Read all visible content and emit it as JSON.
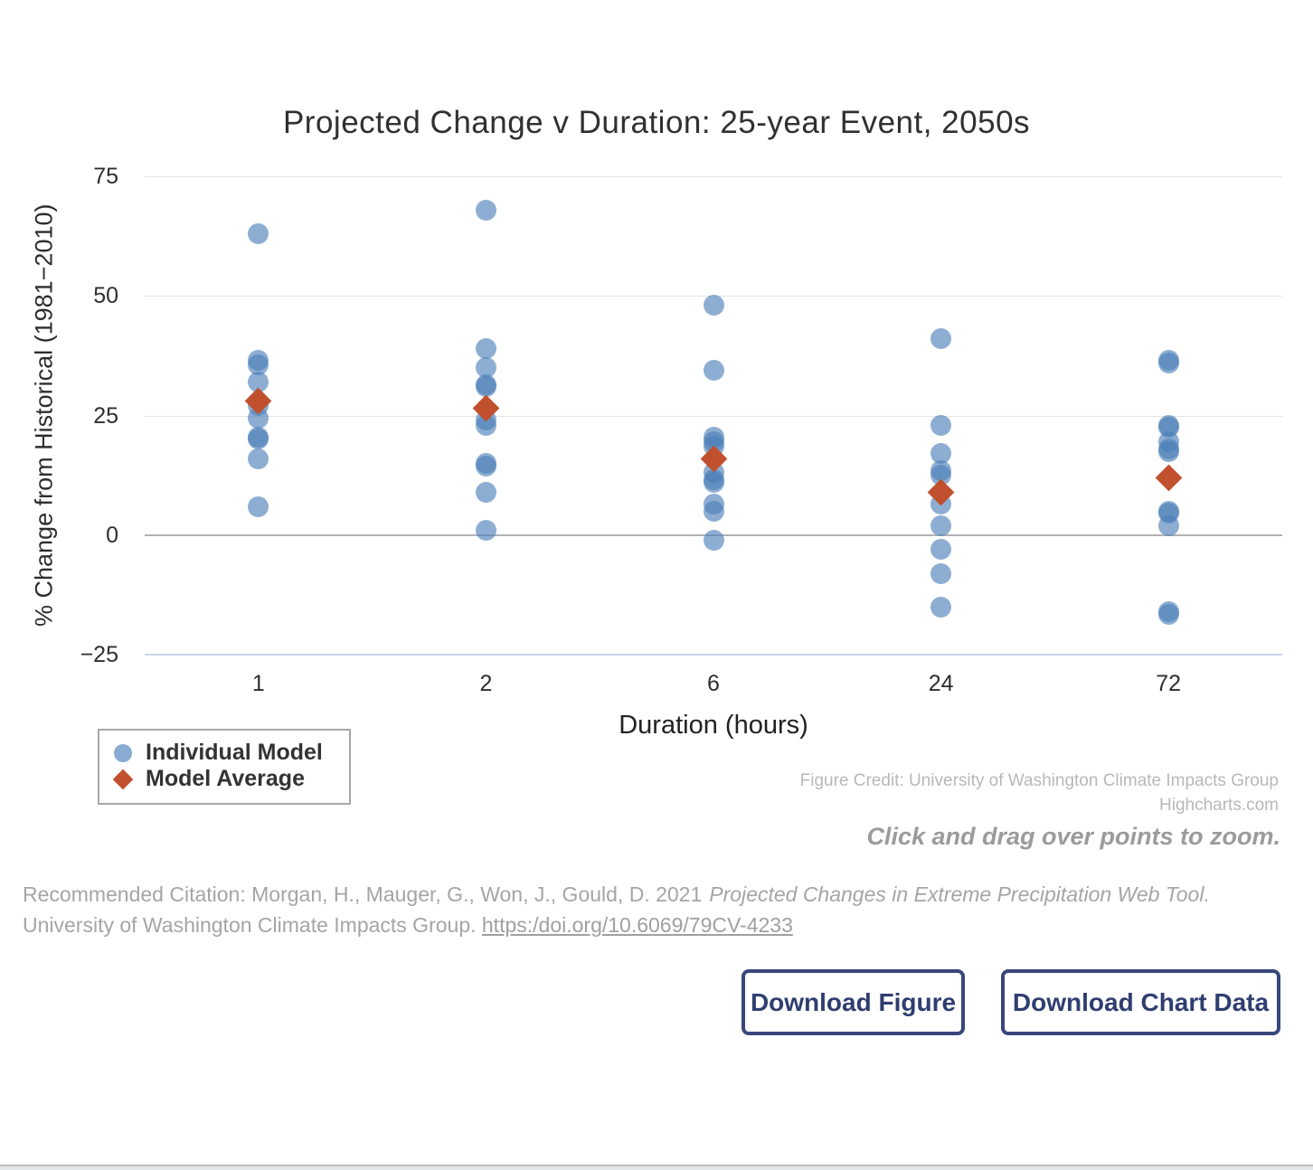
{
  "title": "Projected Change v Duration: 25-year Event, 2050s",
  "chart_data": {
    "type": "scatter",
    "title": "Projected Change v Duration: 25-year Event, 2050s",
    "xlabel": "Duration (hours)",
    "ylabel": "% Change from Historical (1981−2010)",
    "categories": [
      "1",
      "2",
      "6",
      "24",
      "72"
    ],
    "ylim": [
      -25,
      75
    ],
    "yticks": [
      {
        "value": 75,
        "label": "75"
      },
      {
        "value": 50,
        "label": "50"
      },
      {
        "value": 25,
        "label": "25"
      },
      {
        "value": 0,
        "label": "0"
      },
      {
        "value": -25,
        "label": "−25"
      }
    ],
    "grid": "horizontal-only",
    "legend_position": "bottom-left",
    "series": [
      {
        "name": "Individual Model",
        "marker": "circle",
        "color": "rgba(74,126,184,0.63)",
        "values_by_category": [
          [
            63,
            36.5,
            35.5,
            32,
            27,
            24.5,
            20.5,
            20,
            16,
            6
          ],
          [
            68,
            39,
            35,
            31.5,
            31,
            24,
            23,
            15,
            14.5,
            9,
            1
          ],
          [
            48,
            34.5,
            20.5,
            19.5,
            18.5,
            13,
            11.5,
            11,
            6.5,
            5,
            -1
          ],
          [
            41,
            23,
            17,
            13.5,
            12.5,
            6.5,
            2,
            -3,
            -8,
            -15
          ],
          [
            36.5,
            36,
            23,
            22.5,
            19.5,
            18,
            17.5,
            5,
            4.5,
            2,
            -16,
            -16.5
          ]
        ]
      },
      {
        "name": "Model Average",
        "marker": "diamond",
        "color": "#C1502F",
        "values_by_category": [
          [
            28
          ],
          [
            26.5
          ],
          [
            16
          ],
          [
            9
          ],
          [
            12
          ]
        ]
      }
    ]
  },
  "legend": {
    "items": [
      {
        "label": "Individual Model",
        "marker": "circle",
        "color": "#89ABD1"
      },
      {
        "label": "Model Average",
        "marker": "diamond",
        "color": "#C1502F"
      }
    ]
  },
  "credits": {
    "line1": "Figure Credit: University of Washington Climate Impacts Group",
    "line2": "Highcharts.com"
  },
  "zoom_hint": "Click and drag over points to zoom.",
  "citation": {
    "prefix": "Recommended Citation: Morgan, H., Mauger, G., Won, J., Gould, D. 2021",
    "work_title": "Projected Changes in Extreme Precipitation Web Tool.",
    "line2_prefix": "University of Washington Climate Impacts Group. ",
    "doi_link": "https:/doi.org/10.6069/79CV-4233"
  },
  "buttons": {
    "download_figure": "Download Figure",
    "download_chart_data": "Download Chart Data"
  },
  "colors": {
    "individual_model": "#89ABD1",
    "model_average": "#C1502F",
    "button_navy": "#38477b",
    "grid": "#e4e4e4",
    "zero_line": "#b2b2b6",
    "axis_line": "#ccd6eb"
  }
}
